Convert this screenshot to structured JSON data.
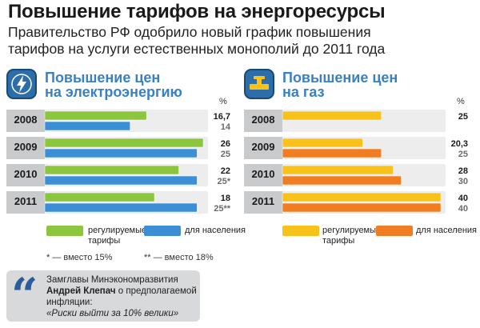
{
  "header": {
    "title": "Повышение тарифов на энергоресурсы",
    "subtitle_line1": "Правительство РФ одобрило новый график повышения",
    "subtitle_line2": "тарифов на услуги естественных монополий до 2011 года"
  },
  "colors": {
    "regulated_electricity": "#8cc63f",
    "population_electricity": "#3c8fd6",
    "regulated_gas": "#f8c21a",
    "population_gas": "#f07d22",
    "year_label_bg": "#c9cacc",
    "title_blue": "#3a80c6"
  },
  "charts": {
    "electricity": {
      "title_line1": "Повышение цен",
      "title_line2": "на электроэнергию",
      "unit": "%",
      "icon": "lightning-icon"
    },
    "gas": {
      "title_line1": "Повышение цен",
      "title_line2": "на газ",
      "unit": "%",
      "icon": "gas-pipe-valve-icon"
    }
  },
  "legend": {
    "electricity_regulated": "регулируемые тарифы",
    "electricity_population": "для населения",
    "gas_regulated": "регулируемые тарифы",
    "gas_population": "для населения"
  },
  "notes": {
    "star1": "* — вместо 15%",
    "star2": "** — вместо 18%"
  },
  "quote": {
    "mark": "“",
    "prefix": "Замглавы Минэкономразвития",
    "name": "Андрей Клепач",
    "middle": "о предполагаемой инфляции:",
    "text": "«Риски выйти за 10% велики»"
  },
  "chart_data": [
    {
      "type": "bar",
      "title": "Повышение цен на электроэнергию",
      "ylabel": "%",
      "categories": [
        "2008",
        "2009",
        "2010",
        "2011"
      ],
      "series": [
        {
          "name": "регулируемые тарифы",
          "values": [
            16.7,
            26,
            22,
            18
          ],
          "labels": [
            "16,7",
            "26",
            "22",
            "18"
          ]
        },
        {
          "name": "для населения",
          "values": [
            14,
            25,
            25,
            25
          ],
          "labels": [
            "14",
            "25",
            "25*",
            "25**"
          ]
        }
      ],
      "xlim": [
        0,
        26
      ]
    },
    {
      "type": "bar",
      "title": "Повышение цен на газ",
      "ylabel": "%",
      "categories": [
        "2008",
        "2009",
        "2010",
        "2011"
      ],
      "series": [
        {
          "name": "регулируемые тарифы",
          "values": [
            25,
            20.3,
            28,
            40
          ],
          "labels": [
            "25",
            "20,3",
            "28",
            "40"
          ]
        },
        {
          "name": "для населения",
          "values": [
            null,
            25,
            30,
            40
          ],
          "labels": [
            "",
            "25",
            "30",
            "40"
          ]
        }
      ],
      "xlim": [
        0,
        40
      ]
    }
  ]
}
